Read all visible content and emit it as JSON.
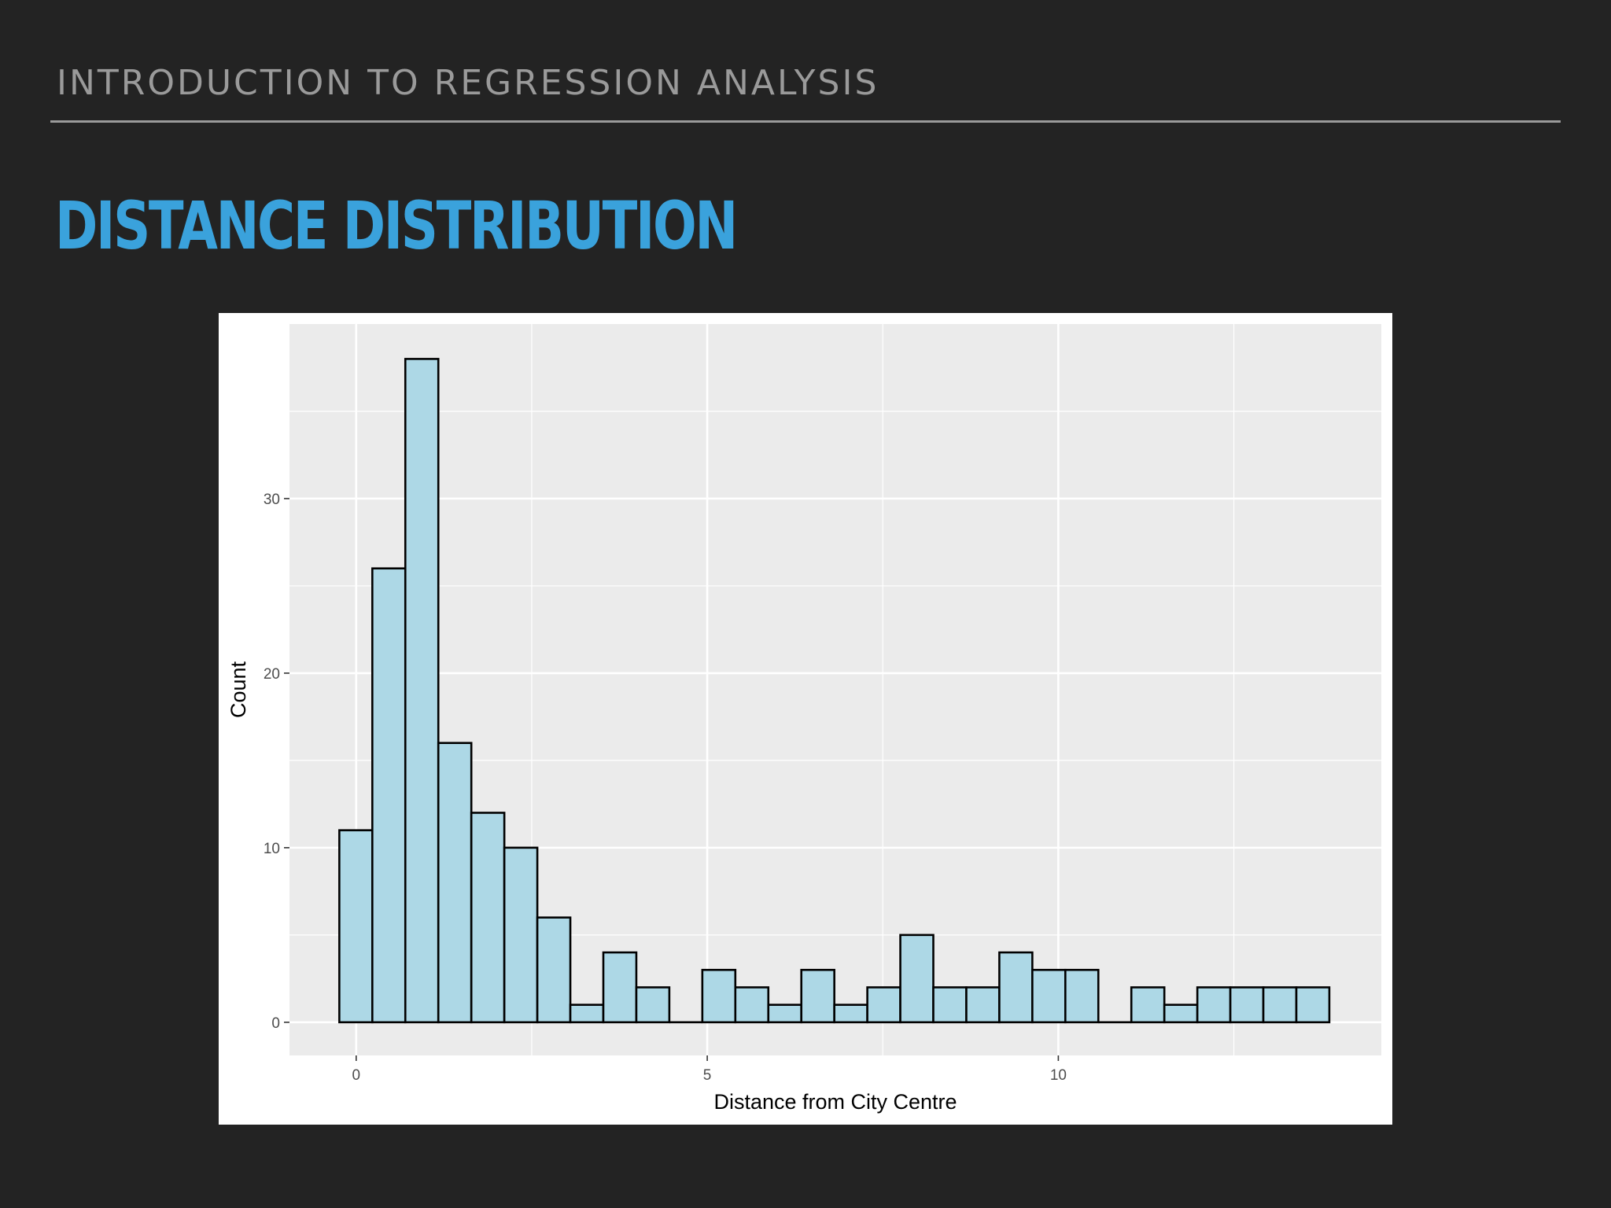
{
  "header": {
    "section": "INTRODUCTION TO REGRESSION ANALYSIS",
    "title": "DISTANCE DISTRIBUTION"
  },
  "chart_data": {
    "type": "bar",
    "subtype": "histogram",
    "title": "",
    "xlabel": "Distance from City Centre",
    "ylabel": "Count",
    "bin_width": 0.47,
    "bin_start": -0.24,
    "counts": [
      11,
      26,
      38,
      16,
      12,
      10,
      6,
      1,
      4,
      2,
      0,
      3,
      2,
      1,
      3,
      1,
      2,
      5,
      2,
      2,
      4,
      3,
      3,
      0,
      2,
      1,
      2,
      2,
      2,
      2
    ],
    "xlim": [
      -0.95,
      14.6
    ],
    "ylim": [
      -1.9,
      40
    ],
    "x_ticks": [
      0,
      5,
      10
    ],
    "y_ticks": [
      0,
      10,
      20,
      30
    ],
    "grid": true,
    "colors": {
      "bar_fill": "#add8e6",
      "bar_edge": "#000000",
      "panel": "#ebebeb",
      "grid": "#ffffff"
    }
  }
}
